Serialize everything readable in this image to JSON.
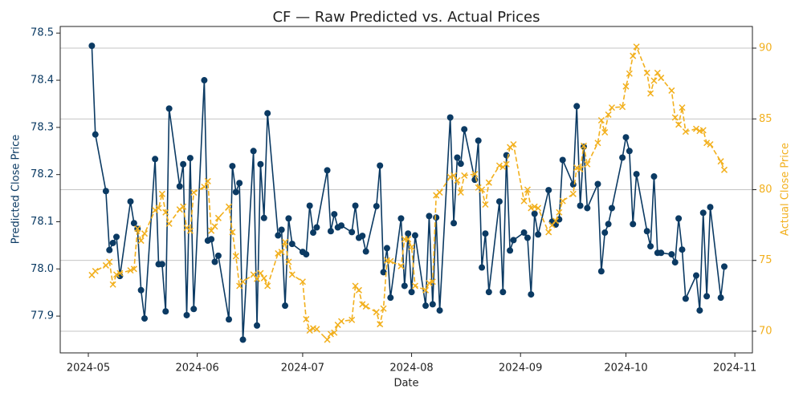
{
  "chart_data": {
    "type": "line",
    "title": "CF — Raw Predicted vs. Actual Prices",
    "x_label": "Date",
    "y_label": "Predicted Close Price",
    "y2_label": "Actual Close Price",
    "y_color": "#0b3a63",
    "y2_color": "#f2b01e",
    "grid": "y2",
    "xlim": [
      "2024-04-23",
      "2024-11-06"
    ],
    "xticks": [
      {
        "value": "2024-05-01",
        "label": "2024-05"
      },
      {
        "value": "2024-06-01",
        "label": "2024-06"
      },
      {
        "value": "2024-07-01",
        "label": "2024-07"
      },
      {
        "value": "2024-08-01",
        "label": "2024-08"
      },
      {
        "value": "2024-09-01",
        "label": "2024-09"
      },
      {
        "value": "2024-10-01",
        "label": "2024-10"
      },
      {
        "value": "2024-11-01",
        "label": "2024-11"
      }
    ],
    "ylim": [
      77.822,
      78.514
    ],
    "yticks": [
      77.9,
      {
        "value": 78,
        "label": "78.0"
      },
      78.1,
      78.2,
      78.3,
      78.4,
      78.5
    ],
    "y2lim": [
      68.47,
      91.53
    ],
    "y2ticks": [
      70,
      75,
      80,
      85,
      90
    ],
    "x": [
      "2024-05-02",
      "2024-05-03",
      "2024-05-06",
      "2024-05-07",
      "2024-05-08",
      "2024-05-09",
      "2024-05-10",
      "2024-05-13",
      "2024-05-14",
      "2024-05-15",
      "2024-05-16",
      "2024-05-17",
      "2024-05-20",
      "2024-05-21",
      "2024-05-22",
      "2024-05-23",
      "2024-05-24",
      "2024-05-27",
      "2024-05-28",
      "2024-05-29",
      "2024-05-30",
      "2024-05-31",
      "2024-06-03",
      "2024-06-04",
      "2024-06-05",
      "2024-06-06",
      "2024-06-07",
      "2024-06-10",
      "2024-06-11",
      "2024-06-12",
      "2024-06-13",
      "2024-06-14",
      "2024-06-17",
      "2024-06-18",
      "2024-06-19",
      "2024-06-20",
      "2024-06-21",
      "2024-06-24",
      "2024-06-25",
      "2024-06-26",
      "2024-06-27",
      "2024-06-28",
      "2024-07-01",
      "2024-07-02",
      "2024-07-03",
      "2024-07-04",
      "2024-07-05",
      "2024-07-08",
      "2024-07-09",
      "2024-07-10",
      "2024-07-11",
      "2024-07-12",
      "2024-07-15",
      "2024-07-16",
      "2024-07-17",
      "2024-07-18",
      "2024-07-19",
      "2024-07-22",
      "2024-07-23",
      "2024-07-24",
      "2024-07-25",
      "2024-07-26",
      "2024-07-29",
      "2024-07-30",
      "2024-07-31",
      "2024-08-01",
      "2024-08-02",
      "2024-08-05",
      "2024-08-06",
      "2024-08-07",
      "2024-08-08",
      "2024-08-09",
      "2024-08-12",
      "2024-08-13",
      "2024-08-14",
      "2024-08-15",
      "2024-08-16",
      "2024-08-19",
      "2024-08-20",
      "2024-08-21",
      "2024-08-22",
      "2024-08-23",
      "2024-08-26",
      "2024-08-27",
      "2024-08-28",
      "2024-08-29",
      "2024-08-30",
      "2024-09-02",
      "2024-09-03",
      "2024-09-04",
      "2024-09-05",
      "2024-09-06",
      "2024-09-09",
      "2024-09-10",
      "2024-09-11",
      "2024-09-12",
      "2024-09-13",
      "2024-09-16",
      "2024-09-17",
      "2024-09-18",
      "2024-09-19",
      "2024-09-20",
      "2024-09-23",
      "2024-09-24",
      "2024-09-25",
      "2024-09-26",
      "2024-09-27",
      "2024-09-30",
      "2024-10-01",
      "2024-10-02",
      "2024-10-03",
      "2024-10-04",
      "2024-10-07",
      "2024-10-08",
      "2024-10-09",
      "2024-10-10",
      "2024-10-11",
      "2024-10-14",
      "2024-10-15",
      "2024-10-16",
      "2024-10-17",
      "2024-10-18",
      "2024-10-21",
      "2024-10-22",
      "2024-10-23",
      "2024-10-24",
      "2024-10-25",
      "2024-10-28",
      "2024-10-29"
    ],
    "series": [
      {
        "name": "Predicted",
        "color": "#0b3a63",
        "marker": "circle",
        "line_style": "solid",
        "values": [
          78.473,
          78.285,
          78.165,
          78.04,
          78.055,
          78.068,
          77.985,
          78.143,
          78.097,
          78.085,
          77.955,
          77.895,
          78.233,
          78.01,
          78.01,
          77.91,
          78.34,
          78.175,
          78.222,
          77.902,
          78.235,
          77.915,
          78.4,
          78.06,
          78.063,
          78.015,
          78.028,
          77.893,
          78.218,
          78.163,
          78.182,
          77.85,
          78.25,
          77.88,
          78.222,
          78.108,
          78.33,
          78.071,
          78.083,
          77.922,
          78.107,
          78.053,
          78.036,
          78.031,
          78.134,
          78.077,
          78.088,
          78.209,
          78.08,
          78.116,
          78.088,
          78.092,
          78.078,
          78.134,
          78.066,
          78.07,
          78.037,
          78.133,
          78.219,
          77.993,
          78.044,
          77.939,
          78.107,
          77.964,
          78.075,
          77.951,
          78.071,
          77.922,
          78.112,
          77.925,
          78.109,
          77.912,
          78.321,
          78.097,
          78.236,
          78.223,
          78.296,
          78.189,
          78.272,
          78.003,
          78.075,
          77.951,
          78.143,
          77.951,
          78.241,
          78.039,
          78.061,
          78.077,
          78.066,
          77.946,
          78.117,
          78.073,
          78.167,
          78.1,
          78.094,
          78.105,
          78.231,
          78.179,
          78.345,
          78.134,
          78.259,
          78.129,
          78.18,
          77.995,
          78.077,
          78.095,
          78.129,
          78.236,
          78.279,
          78.25,
          78.095,
          78.201,
          78.08,
          78.048,
          78.196,
          78.034,
          78.034,
          78.031,
          78.014,
          78.107,
          78.041,
          77.937,
          77.986,
          77.912,
          78.119,
          77.942,
          78.131,
          77.939,
          78.005
        ]
      },
      {
        "name": "Actual",
        "color": "#f2b01e",
        "marker": "x",
        "line_style": "dashed",
        "axis": "y2",
        "values": [
          73.97,
          74.25,
          74.65,
          74.9,
          73.3,
          74.0,
          74.1,
          74.3,
          74.4,
          77.25,
          76.4,
          76.9,
          78.55,
          78.7,
          79.7,
          78.4,
          77.6,
          78.6,
          78.8,
          77.3,
          77.1,
          79.8,
          80.2,
          80.6,
          77.1,
          77.4,
          78.0,
          78.8,
          77.0,
          75.3,
          73.2,
          73.5,
          74.0,
          73.7,
          74.1,
          73.75,
          73.2,
          75.5,
          75.6,
          76.3,
          74.9,
          74.0,
          73.5,
          70.85,
          70.05,
          70.2,
          70.15,
          69.4,
          69.8,
          69.9,
          70.45,
          70.7,
          70.8,
          73.2,
          72.9,
          71.9,
          71.75,
          71.35,
          70.5,
          71.6,
          75.0,
          74.95,
          74.6,
          76.5,
          76.5,
          75.95,
          73.2,
          72.9,
          73.4,
          73.5,
          79.6,
          79.8,
          80.9,
          81.0,
          80.65,
          79.8,
          81.0,
          81.1,
          80.15,
          80.0,
          78.95,
          80.5,
          81.7,
          81.6,
          81.8,
          83.0,
          83.2,
          79.2,
          80.0,
          78.7,
          78.8,
          78.7,
          77.0,
          77.5,
          77.8,
          78.4,
          79.2,
          79.7,
          81.55,
          81.45,
          83.1,
          81.8,
          83.3,
          84.9,
          84.05,
          85.3,
          85.8,
          85.85,
          87.3,
          88.2,
          89.45,
          90.1,
          88.25,
          86.8,
          87.7,
          88.25,
          87.9,
          87.0,
          85.1,
          84.6,
          85.8,
          84.1,
          84.3,
          84.15,
          84.2,
          83.3,
          83.2,
          82.0,
          81.4
        ]
      }
    ]
  }
}
